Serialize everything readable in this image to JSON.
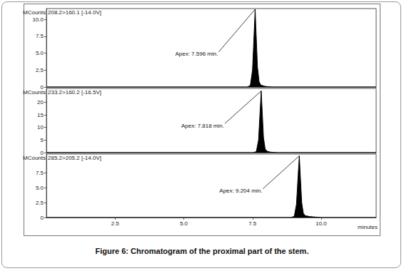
{
  "chart_data": [
    {
      "type": "area",
      "title": "208.2>160.1 [-14.0V]",
      "ylabel": "MCounts",
      "color": "#000000",
      "x": [
        0,
        7.3,
        7.42,
        7.5,
        7.56,
        7.596,
        7.63,
        7.68,
        7.74,
        7.8,
        7.95,
        8.2,
        12
      ],
      "values": [
        0,
        0,
        0.2,
        2.5,
        8,
        11.5,
        8,
        3,
        0.8,
        0.3,
        0.1,
        0,
        0
      ],
      "xlim": [
        0,
        12
      ],
      "ylim": [
        0,
        11.6
      ],
      "yticks": [
        0,
        2.5,
        {
          "value": 5,
          "label": "5.0"
        },
        7.5,
        {
          "value": 10,
          "label": "10.0"
        }
      ],
      "annotations": [
        {
          "text": "Apex: 7.596 min.",
          "x": 7.596,
          "y": 11.5
        }
      ],
      "tick_labels": "y"
    },
    {
      "type": "area",
      "title": "233.2>160.2 [-16.5V]",
      "ylabel": "MCounts",
      "color": "#000000",
      "x": [
        0,
        7.52,
        7.64,
        7.72,
        7.78,
        7.818,
        7.85,
        7.9,
        7.96,
        8.02,
        8.15,
        8.4,
        12
      ],
      "values": [
        0,
        0,
        0.4,
        5,
        17,
        24.5,
        17,
        6,
        1.5,
        0.6,
        0.2,
        0,
        0
      ],
      "xlim": [
        0,
        12
      ],
      "ylim": [
        0,
        25.5
      ],
      "yticks": [
        0,
        5,
        10,
        15,
        20
      ],
      "annotations": [
        {
          "text": "Apex: 7.818 min.",
          "x": 7.818,
          "y": 24.5
        }
      ],
      "tick_labels": "y"
    },
    {
      "type": "area",
      "title": "285.2>205.2 [-14.0V]",
      "ylabel": "MCounts",
      "color": "#000000",
      "x": [
        0,
        8.9,
        9.02,
        9.1,
        9.16,
        9.204,
        9.24,
        9.29,
        9.35,
        9.42,
        9.6,
        10,
        12
      ],
      "values": [
        0,
        0,
        0.2,
        2.2,
        7,
        10.3,
        7,
        2.5,
        0.7,
        0.3,
        0.15,
        0,
        0
      ],
      "xlim": [
        0,
        12
      ],
      "ylim": [
        0,
        10.6
      ],
      "xlabel": "minutes",
      "xticks": [
        2.5,
        {
          "value": 5,
          "label": "5.0"
        },
        7.5,
        {
          "value": 10,
          "label": "10.0"
        }
      ],
      "yticks": [
        0,
        2.5,
        {
          "value": 5,
          "label": "5.0"
        },
        7.5
      ],
      "annotations": [
        {
          "text": "Apex: 9.204 min.",
          "x": 9.204,
          "y": 10.3
        }
      ]
    }
  ],
  "caption": "Figure 6: Chromatogram of the proximal part of the stem."
}
